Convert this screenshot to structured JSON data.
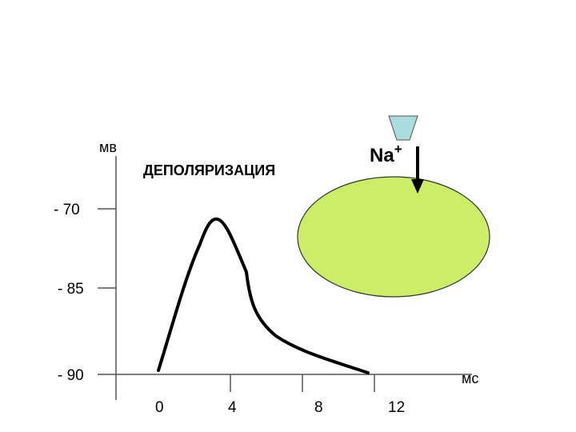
{
  "labels": {
    "y_unit": "мв",
    "x_unit": "мс",
    "title": "ДЕПОЛЯРИЗАЦИЯ",
    "ion": "Na",
    "ion_charge": "+"
  },
  "colors": {
    "title": "#cc0000",
    "cell_fill": "#ccee66",
    "cell_stroke": "#333333",
    "channel_fill": "#aadddd",
    "curve": "#000000",
    "axis": "#555555"
  },
  "icons": {
    "cell": "cell-ellipse-icon",
    "channel": "ion-channel-icon",
    "arrow": "down-arrow-icon"
  },
  "chart_data": {
    "type": "line",
    "y_ticks": [
      {
        "value": -70,
        "label": "- 70"
      },
      {
        "value": -85,
        "label": "- 85"
      },
      {
        "value": -90,
        "label": "- 90"
      }
    ],
    "x_ticks": [
      {
        "value": 0,
        "label": "0"
      },
      {
        "value": 4,
        "label": "4"
      },
      {
        "value": 8,
        "label": "8"
      },
      {
        "value": 12,
        "label": "12"
      }
    ]
  }
}
